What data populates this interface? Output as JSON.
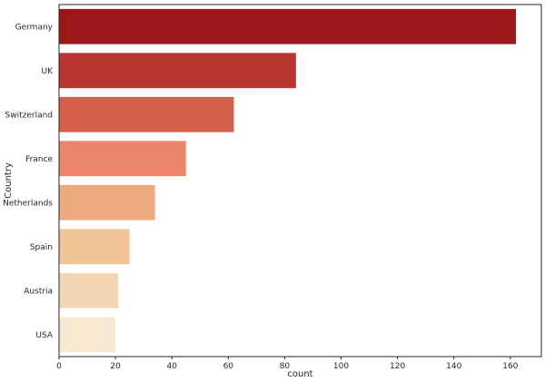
{
  "chart_data": {
    "type": "bar",
    "orientation": "horizontal",
    "title": "",
    "xlabel": "count",
    "ylabel": "Country",
    "xlim": [
      0,
      171
    ],
    "xticks": [
      0,
      20,
      40,
      60,
      80,
      100,
      120,
      140,
      160
    ],
    "grid": false,
    "categories": [
      "Germany",
      "UK",
      "Switzerland",
      "France",
      "Netherlands",
      "Spain",
      "Austria",
      "USA"
    ],
    "values": [
      162,
      84,
      62,
      45,
      34,
      25,
      21,
      20
    ],
    "colors": [
      "#9b1719",
      "#b93630",
      "#d5604c",
      "#e8856a",
      "#eeaa80",
      "#f2c597",
      "#f3d7b4",
      "#f8e9d3"
    ]
  }
}
